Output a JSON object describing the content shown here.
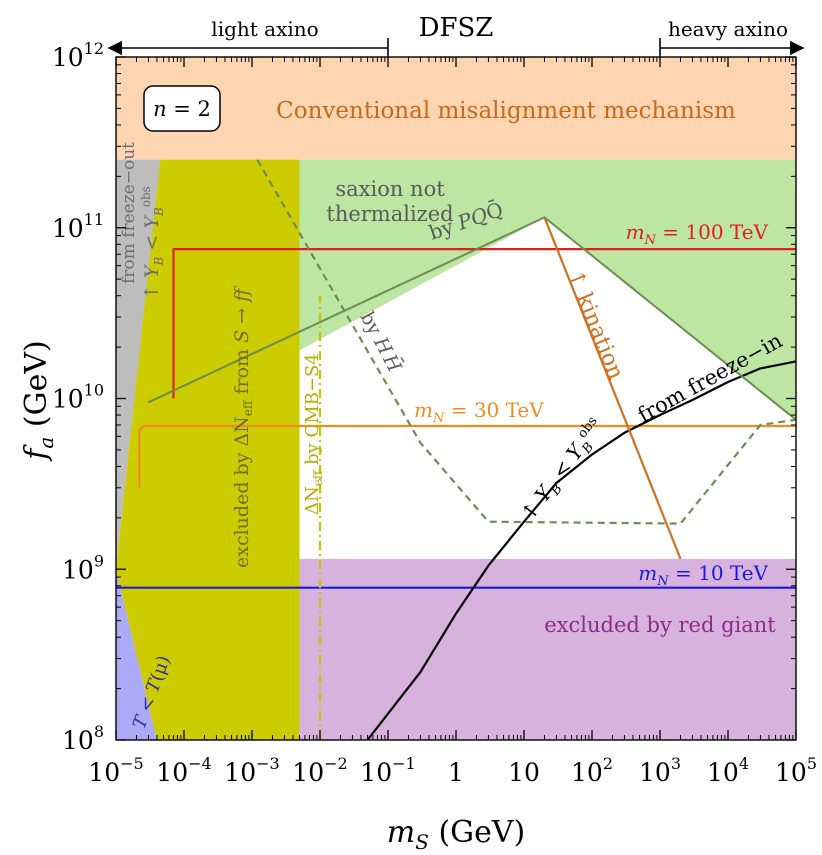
{
  "chart_data": {
    "type": "line",
    "xscale": "log",
    "yscale": "log",
    "xlim": [
      1e-05,
      100000.0
    ],
    "ylim": [
      100000000.0,
      1000000000000.0
    ],
    "xlabel": {
      "main": "m",
      "sub": "S",
      "unit": " (GeV)"
    },
    "ylabel": {
      "main": "f",
      "sub": "a",
      "unit": " (GeV)"
    },
    "xticks": [
      {
        "v": 1e-05,
        "m": "10",
        "e": "−5"
      },
      {
        "v": 0.0001,
        "m": "10",
        "e": "−4"
      },
      {
        "v": 0.001,
        "m": "10",
        "e": "−3"
      },
      {
        "v": 0.01,
        "m": "10",
        "e": "−2"
      },
      {
        "v": 0.1,
        "m": "10",
        "e": "−1"
      },
      {
        "v": 1,
        "m": "1",
        "e": ""
      },
      {
        "v": 10,
        "m": "10",
        "e": ""
      },
      {
        "v": 100,
        "m": "10",
        "e": "2"
      },
      {
        "v": 1000,
        "m": "10",
        "e": "3"
      },
      {
        "v": 10000,
        "m": "10",
        "e": "4"
      },
      {
        "v": 100000,
        "m": "10",
        "e": "5"
      }
    ],
    "yticks": [
      {
        "v": 100000000.0,
        "m": "10",
        "e": "8"
      },
      {
        "v": 1000000000.0,
        "m": "10",
        "e": "9"
      },
      {
        "v": 10000000000.0,
        "m": "10",
        "e": "10"
      },
      {
        "v": 100000000000.0,
        "m": "10",
        "e": "11"
      },
      {
        "v": 1000000000000.0,
        "m": "10",
        "e": "12"
      }
    ],
    "top_labels": {
      "light": "light axino",
      "center": "DFSZ",
      "heavy": "heavy axino",
      "arrow_split_ms": 0.1,
      "heavy_start_ms": 1000
    },
    "box_label": {
      "lhs": "n",
      "rhs": " = 2"
    },
    "regions": [
      {
        "name": "conventional misalignment",
        "color": "#FDD5B1",
        "text": "Conventional misalignment mechanism",
        "text_color": "#C8691C",
        "points": [
          [
            1e-05,
            1000000000000.0
          ],
          [
            100000.0,
            1000000000000.0
          ],
          [
            100000.0,
            250000000000.0
          ],
          [
            1e-05,
            250000000000.0
          ]
        ]
      },
      {
        "name": "saxion not thermalized",
        "color": "#BCE6A2",
        "text": [
          "saxion not",
          "thermalized"
        ],
        "text_color": "#5A5A5A",
        "points": [
          [
            1e-05,
            250000000000.0
          ],
          [
            100000.0,
            250000000000.0
          ],
          [
            100000.0,
            7500000000.0
          ],
          [
            20,
            115000000000.0
          ],
          [
            1e-05,
            5000000000.0
          ]
        ]
      },
      {
        "name": "freeze-out excluded",
        "color": "#BDBDBD",
        "text": [
          "from freeze−out",
          "↑ Y_B < Y_B^obs"
        ],
        "text_color": "#6E6E6E",
        "points": [
          [
            1e-05,
            250000000000.0
          ],
          [
            4.5e-05,
            250000000000.0
          ],
          [
            1e-05,
            1000000000.0
          ]
        ]
      },
      {
        "name": "T < T_mu excluded",
        "color": "#AAAAF5",
        "text": "T < T_μ",
        "text_color": "#3030A0",
        "points": [
          [
            1e-05,
            1000000000.0
          ],
          [
            4e-05,
            100000000.0
          ],
          [
            1e-05,
            100000000.0
          ]
        ]
      },
      {
        "name": "Delta N_eff excluded",
        "color": "#CDCC00",
        "text": "excluded by ΔN_eff from S → ff",
        "text_color": "#6E6E3A",
        "points": [
          [
            4.5e-05,
            250000000000.0
          ],
          [
            0.005,
            250000000000.0
          ],
          [
            0.005,
            100000000.0
          ],
          [
            4e-05,
            100000000.0
          ],
          [
            1e-05,
            1000000000.0
          ]
        ]
      },
      {
        "name": "red giant excluded",
        "color": "#D7B2DC",
        "text": "excluded by red giant",
        "text_color": "#8A2D8A",
        "points": [
          [
            0.005,
            1150000000.0
          ],
          [
            100000.0,
            1150000000.0
          ],
          [
            100000.0,
            100000000.0
          ],
          [
            0.005,
            100000000.0
          ]
        ]
      }
    ],
    "series": [
      {
        "name": "m_N = 100 TeV",
        "label_main": "m",
        "label_sub": "N",
        "label_rest": " = 100 TeV",
        "color": "#E02020",
        "points": [
          [
            7e-05,
            10000000000.0
          ],
          [
            7e-05,
            75000000000.0
          ],
          [
            100000.0,
            75000000000.0
          ]
        ]
      },
      {
        "name": "m_N = 30 TeV",
        "label_main": "m",
        "label_sub": "N",
        "label_rest": " = 30 TeV",
        "color": "#F08C1E",
        "points": [
          [
            2.2e-05,
            3000000000.0
          ],
          [
            2.2e-05,
            6500000000.0
          ],
          [
            2.5e-05,
            6900000000.0
          ],
          [
            100000.0,
            6900000000.0
          ]
        ]
      },
      {
        "name": "m_N = 10 TeV",
        "label_main": "m",
        "label_sub": "N",
        "label_rest": " = 10 TeV",
        "color": "#1A1ADC",
        "points": [
          [
            1e-05,
            780000000.0
          ],
          [
            100000.0,
            780000000.0
          ]
        ]
      },
      {
        "name": "from freeze-in",
        "text": "from freeze−in",
        "color": "#000000",
        "points": [
          [
            0.05,
            100000000.0
          ],
          [
            0.3,
            250000000.0
          ],
          [
            1,
            550000000.0
          ],
          [
            3,
            1050000000.0
          ],
          [
            10,
            1900000000.0
          ],
          [
            30,
            3200000000.0
          ],
          [
            100,
            4700000000.0
          ],
          [
            300,
            6300000000.0
          ],
          [
            1000,
            8000000000.0
          ],
          [
            3000,
            9800000000.0
          ],
          [
            10000,
            12500000000.0
          ],
          [
            30000,
            15000000000.0
          ],
          [
            100000.0,
            16500000000.0
          ]
        ]
      },
      {
        "name": "kination",
        "text": "↑ kination",
        "color": "#D0701E",
        "points": [
          [
            20,
            115000000000.0
          ],
          [
            2000,
            1150000000.0
          ]
        ]
      },
      {
        "name": "by H H-bar",
        "text": "by H H̄",
        "color": "#6C8E52",
        "dash": "7,5",
        "points": [
          [
            0.0012,
            250000000000.0
          ],
          [
            0.3,
            5500000000.0
          ],
          [
            3,
            1900000000.0
          ],
          [
            2000,
            1850000000.0
          ],
          [
            30000,
            7000000000.0
          ],
          [
            100000.0,
            7500000000.0
          ]
        ]
      },
      {
        "name": "CMB-S4",
        "text": "ΔN_eff by CMB−S4",
        "color": "#CDC000",
        "dash": "9,4,2,4",
        "points": [
          [
            0.01,
            100000000.0
          ],
          [
            0.01,
            40000000000.0
          ]
        ]
      },
      {
        "name": "by PQ Q-bar",
        "text": "by PQQ̄",
        "color": "#6C8E52",
        "points": []
      }
    ],
    "annotations": {
      "yb_freezein": "↑ Y_B < Y_B^obs"
    }
  }
}
